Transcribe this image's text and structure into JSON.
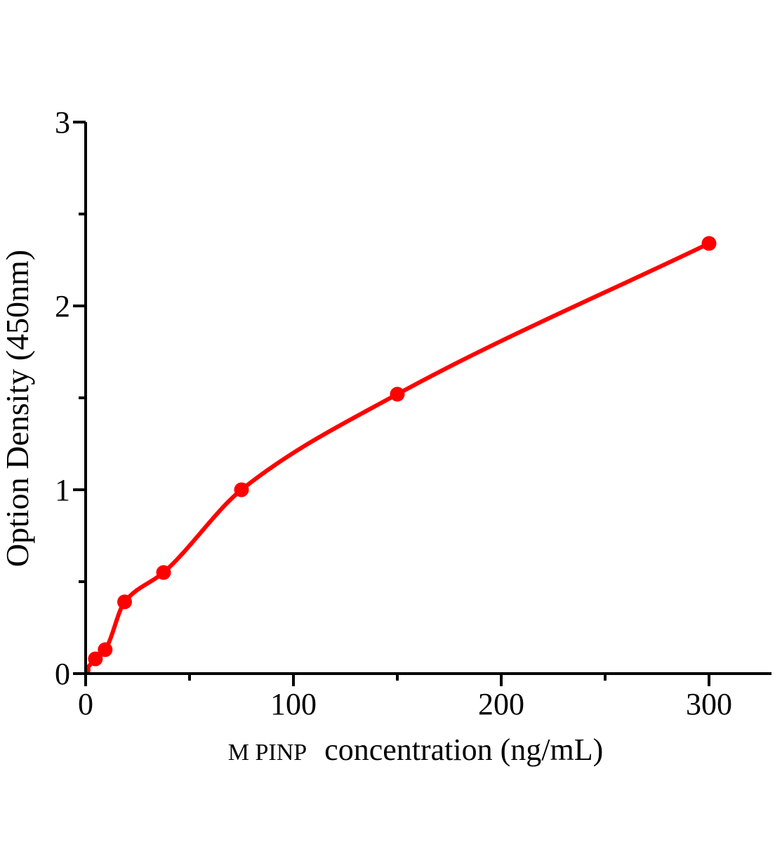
{
  "figure": {
    "background": "#ffffff",
    "description": "Standard curve scatter plot with fitted smooth red curve"
  },
  "chart_data": {
    "type": "scatter",
    "subtype": "standard-curve-with-fitted-line",
    "title": "",
    "xlabel_prefix": "M PINP",
    "xlabel": "concentration（ng/mL）",
    "ylabel": "Option Density（450nm）",
    "x": [
      0,
      4.69,
      9.38,
      18.75,
      37.5,
      75,
      150,
      300
    ],
    "y": [
      0.02,
      0.08,
      0.13,
      0.39,
      0.55,
      1.0,
      1.52,
      2.34
    ],
    "x_ticks": [
      0,
      100,
      200,
      300
    ],
    "x_minor_ticks": [
      50,
      150,
      250
    ],
    "y_ticks": [
      0,
      1,
      2,
      3
    ],
    "y_minor_ticks": [
      0.5,
      1.5,
      2.5
    ],
    "xlim": [
      0,
      330
    ],
    "ylim": [
      0,
      3
    ],
    "grid": false,
    "legend": false,
    "marker": "filled-circle",
    "line_style": "smooth-fit",
    "curve_color": "#ff0000",
    "axis_color": "#000000",
    "text_color": "#000000"
  }
}
